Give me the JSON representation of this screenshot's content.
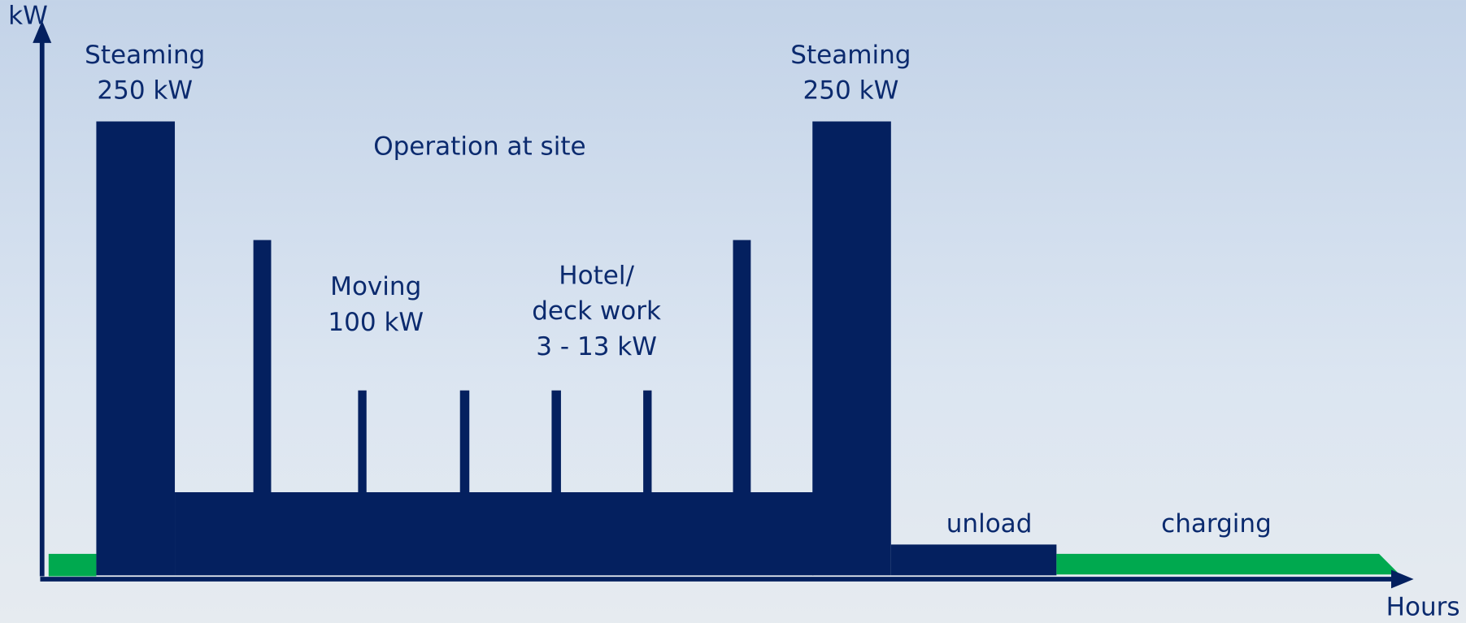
{
  "axes": {
    "y_label": "kW",
    "x_label": "Hours"
  },
  "labels": {
    "steaming_start": [
      "Steaming",
      "250 kW"
    ],
    "operation": "Operation at site",
    "moving": [
      "Moving",
      "100 kW"
    ],
    "hotel": [
      "Hotel/",
      "deck work",
      "3 - 13 kW"
    ],
    "steaming_end": [
      "Steaming",
      "250 kW"
    ],
    "unload": "unload",
    "charging": "charging"
  }
}
